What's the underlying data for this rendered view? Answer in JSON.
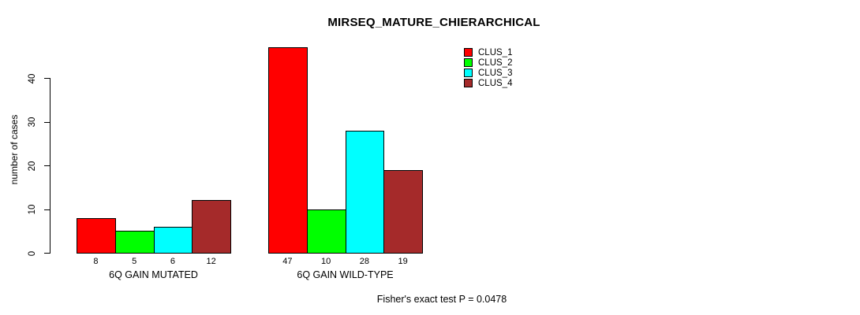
{
  "chart_data": {
    "type": "bar",
    "title": "MIRSEQ_MATURE_CHIERARCHICAL",
    "ylabel": "number of cases",
    "xlabel": "",
    "yticks": [
      0,
      10,
      20,
      30,
      40
    ],
    "ylim": [
      0,
      47
    ],
    "grid": false,
    "legend_position": "top-right",
    "categories": [
      "6Q GAIN MUTATED",
      "6Q GAIN WILD-TYPE"
    ],
    "series": [
      {
        "name": "CLUS_1",
        "color": "#FF0000",
        "values": [
          8,
          47
        ]
      },
      {
        "name": "CLUS_2",
        "color": "#00FF00",
        "values": [
          5,
          10
        ]
      },
      {
        "name": "CLUS_3",
        "color": "#00FFFF",
        "values": [
          6,
          28
        ]
      },
      {
        "name": "CLUS_4",
        "color": "#A52A2A",
        "values": [
          12,
          19
        ]
      }
    ],
    "bar_value_labels": [
      [
        8,
        5,
        6,
        12
      ],
      [
        47,
        10,
        28,
        19
      ]
    ],
    "annotation": "Fisher's exact test P = 0.0478"
  },
  "colors": {
    "background": "#FFFFFF",
    "foreground": "#000000"
  }
}
